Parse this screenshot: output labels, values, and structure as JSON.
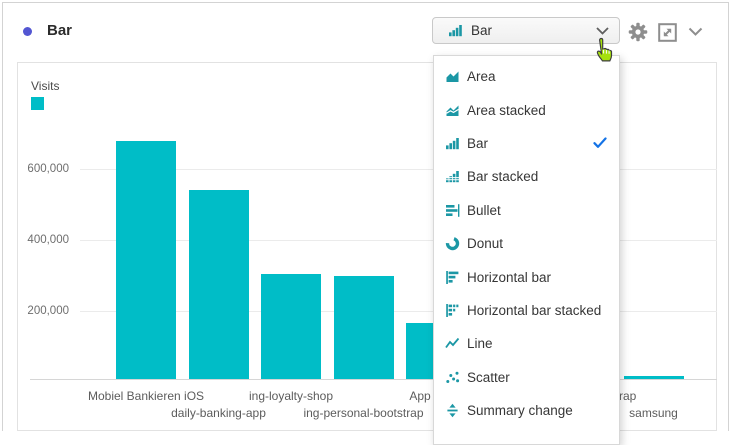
{
  "header": {
    "title": "Bar"
  },
  "toolbar": {
    "viz_type_selector": {
      "value": "Bar",
      "icon": "bar-chart-icon"
    },
    "icons": [
      "gear",
      "fullscreen-expand",
      "chevron-down"
    ]
  },
  "viz_type_menu": {
    "items": [
      {
        "label": "Area",
        "icon": "area",
        "selected": false
      },
      {
        "label": "Area stacked",
        "icon": "area-stacked",
        "selected": false
      },
      {
        "label": "Bar",
        "icon": "bar",
        "selected": true
      },
      {
        "label": "Bar stacked",
        "icon": "bar-stacked",
        "selected": false
      },
      {
        "label": "Bullet",
        "icon": "bullet",
        "selected": false
      },
      {
        "label": "Donut",
        "icon": "donut",
        "selected": false
      },
      {
        "label": "Horizontal bar",
        "icon": "horizontal-bar",
        "selected": false
      },
      {
        "label": "Horizontal bar stacked",
        "icon": "horizontal-bar-stacked",
        "selected": false
      },
      {
        "label": "Line",
        "icon": "line",
        "selected": false
      },
      {
        "label": "Scatter",
        "icon": "scatter",
        "selected": false
      },
      {
        "label": "Summary change",
        "icon": "summary-change",
        "selected": false
      }
    ]
  },
  "chart_data": {
    "type": "bar",
    "legend": {
      "label": "Visits",
      "color": "#00bdc7"
    },
    "ylim": [
      0,
      700000
    ],
    "grid": true,
    "y_ticks": [
      {
        "label": "600,000",
        "value": 600000
      },
      {
        "label": "400,000",
        "value": 400000
      },
      {
        "label": "200,000",
        "value": 200000
      }
    ],
    "bars": [
      {
        "label": "Mobiel Bankieren iOS",
        "value": 680000,
        "label_row": 1
      },
      {
        "label": "daily-banking-app",
        "value": 540000,
        "label_row": 2
      },
      {
        "label": "ing-loyalty-shop",
        "value": 300000,
        "label_row": 1
      },
      {
        "label": "ing-personal-bootstrap",
        "value": 295000,
        "label_row": 2
      },
      {
        "label": "App",
        "value": 160000,
        "label_row": 1,
        "occlusion": "partially hidden by open menu"
      },
      {
        "label": "",
        "value": null,
        "label_row": 1,
        "occlusion": "hidden behind open menu"
      },
      {
        "label": "rap",
        "value": null,
        "label_row": 1,
        "occlusion": "bar hidden behind open menu, label tail visible"
      },
      {
        "label": "samsung",
        "value": 8000,
        "label_row": 2
      }
    ]
  },
  "colors": {
    "bar_teal": "#00bdc7",
    "menu_icon_teal": "#1b97a5",
    "check_blue": "#1473e6",
    "panel_dot": "#5356d2",
    "gray_icon": "#8e8e8e"
  },
  "cursor": {
    "style": "hand-pointer"
  }
}
